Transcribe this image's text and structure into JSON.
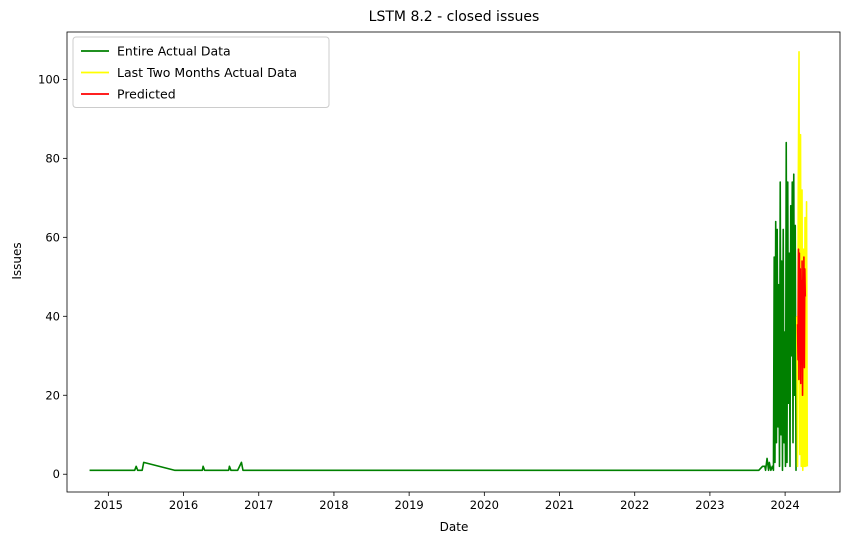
{
  "chart_data": {
    "type": "line",
    "title": "LSTM 8.2 - closed issues",
    "xlabel": "Date",
    "ylabel": "Issues",
    "xlim": [
      2014.45,
      2024.73
    ],
    "ylim": [
      -4.5,
      112.0
    ],
    "x_ticks": [
      2015,
      2016,
      2017,
      2018,
      2019,
      2020,
      2021,
      2022,
      2023,
      2024
    ],
    "x_tick_labels": [
      "2015",
      "2016",
      "2017",
      "2018",
      "2019",
      "2020",
      "2021",
      "2022",
      "2023",
      "2024"
    ],
    "y_ticks": [
      0,
      20,
      40,
      60,
      80,
      100
    ],
    "y_tick_labels": [
      "0",
      "20",
      "40",
      "60",
      "80",
      "100"
    ],
    "grid": false,
    "legend_position": "top-left",
    "series": [
      {
        "name": "Entire Actual Data",
        "color": "#008000",
        "x": [
          2014.75,
          2015.35,
          2015.37,
          2015.39,
          2015.45,
          2015.47,
          2015.88,
          2016.25,
          2016.26,
          2016.28,
          2016.6,
          2016.61,
          2016.63,
          2016.72,
          2016.77,
          2016.79,
          2023.65,
          2023.7,
          2023.73,
          2023.74,
          2023.76,
          2023.78,
          2023.79,
          2023.81,
          2023.83,
          2023.845,
          2023.855,
          2023.865,
          2023.875,
          2023.885,
          2023.895,
          2023.905,
          2023.915,
          2023.925,
          2023.935,
          2023.945,
          2023.955,
          2023.965,
          2023.975,
          2023.985,
          2023.995,
          2024.005,
          2024.015,
          2024.025,
          2024.035,
          2024.045,
          2024.055,
          2024.065,
          2024.075,
          2024.085,
          2024.095,
          2024.105,
          2024.115,
          2024.125,
          2024.135,
          2024.145,
          2024.155
        ],
        "values": [
          1,
          1,
          2,
          1,
          1,
          3,
          1,
          1,
          2,
          1,
          1,
          2,
          1,
          1,
          3,
          1,
          1,
          2,
          2,
          1,
          4,
          1,
          3,
          1,
          2,
          1,
          55,
          3,
          64,
          8,
          62,
          12,
          48,
          2,
          74,
          10,
          54,
          1,
          62,
          8,
          36,
          2,
          84,
          3,
          74,
          18,
          56,
          2,
          68,
          30,
          74,
          8,
          76,
          20,
          63,
          1,
          40
        ]
      },
      {
        "name": "Last Two Months Actual Data",
        "color": "#ffff00",
        "x": [
          2024.155,
          2024.165,
          2024.175,
          2024.185,
          2024.195,
          2024.205,
          2024.215,
          2024.225,
          2024.235,
          2024.245,
          2024.255,
          2024.265,
          2024.275,
          2024.285,
          2024.295
        ],
        "values": [
          40,
          2,
          72,
          107,
          5,
          86,
          2,
          72,
          1,
          57,
          2,
          65,
          2,
          69,
          2
        ]
      },
      {
        "name": "Predicted",
        "color": "#ff0000",
        "x": [
          2024.165,
          2024.172,
          2024.178,
          2024.184,
          2024.19,
          2024.196,
          2024.202,
          2024.208,
          2024.214,
          2024.22,
          2024.226,
          2024.232,
          2024.238,
          2024.244,
          2024.25,
          2024.256,
          2024.262,
          2024.268
        ],
        "values": [
          38,
          29,
          57,
          24,
          56,
          33,
          52,
          23,
          49,
          28,
          54,
          20,
          44,
          36,
          55,
          27,
          52,
          45
        ]
      }
    ]
  }
}
